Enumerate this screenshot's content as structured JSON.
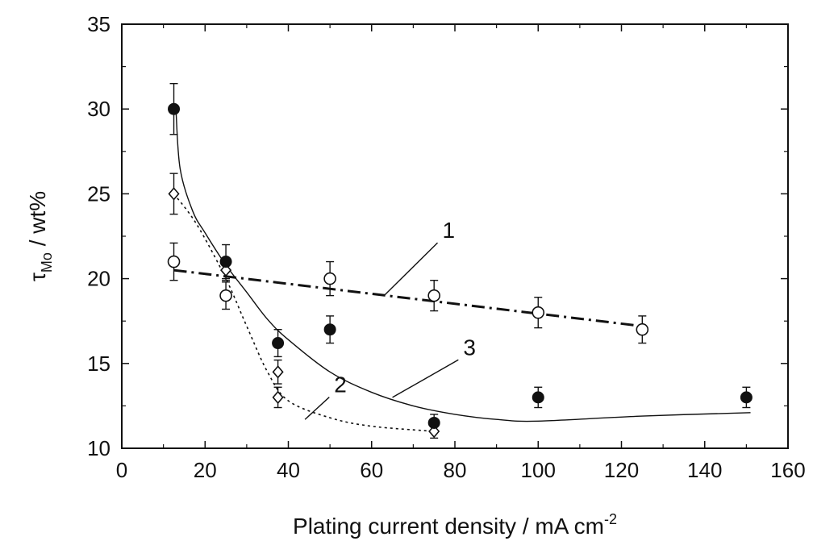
{
  "chart_data": {
    "type": "scatter",
    "xlabel": "Plating current density / mA cm",
    "xlabel_sup": "-2",
    "ylabel_main": "τ",
    "ylabel_sub": "Mo",
    "ylabel_tail": " / wt%",
    "xlim": [
      0,
      160
    ],
    "ylim": [
      10,
      35
    ],
    "xticks": [
      0,
      20,
      40,
      60,
      80,
      100,
      120,
      140,
      160
    ],
    "yticks": [
      10,
      15,
      20,
      25,
      30,
      35
    ],
    "xtick_labels": [
      "0",
      "20",
      "40",
      "60",
      "80",
      "100",
      "120",
      "140",
      "160"
    ],
    "ytick_labels": [
      "10",
      "15",
      "20",
      "25",
      "30",
      "35"
    ],
    "grid": false,
    "series": [
      {
        "marker": "open-circle",
        "points": [
          {
            "x": 12.5,
            "y": 21.0,
            "err": 1.1
          },
          {
            "x": 25,
            "y": 19.0,
            "err": 0.8
          },
          {
            "x": 50,
            "y": 20.0,
            "err": 1.0
          },
          {
            "x": 75,
            "y": 19.0,
            "err": 0.9
          },
          {
            "x": 100,
            "y": 18.0,
            "err": 0.9
          },
          {
            "x": 125,
            "y": 17.0,
            "err": 0.8
          }
        ],
        "fit": {
          "style": "dash-dot",
          "points": [
            [
              12.5,
              20.5
            ],
            [
              125,
              17.2
            ]
          ]
        }
      },
      {
        "marker": "open-diamond",
        "points": [
          {
            "x": 12.5,
            "y": 25.0,
            "err": 1.2
          },
          {
            "x": 25,
            "y": 20.5,
            "err": 0.6
          },
          {
            "x": 37.5,
            "y": 14.5,
            "err": 0.7
          },
          {
            "x": 37.5,
            "y": 13.0,
            "err": 0.6
          },
          {
            "x": 75,
            "y": 11.0,
            "err": 0.4
          }
        ],
        "fit": {
          "style": "dotted",
          "points": [
            [
              12.5,
              25.0
            ],
            [
              18,
              23.2
            ],
            [
              25,
              20.0
            ],
            [
              30,
              17.2
            ],
            [
              35,
              14.5
            ],
            [
              40,
              12.8
            ],
            [
              50,
              11.8
            ],
            [
              60,
              11.3
            ],
            [
              75,
              11.0
            ]
          ]
        }
      },
      {
        "marker": "filled-circle",
        "points": [
          {
            "x": 12.5,
            "y": 30.0,
            "err": 1.5
          },
          {
            "x": 25,
            "y": 21.0,
            "err": 1.0
          },
          {
            "x": 37.5,
            "y": 16.2,
            "err": 0.8
          },
          {
            "x": 50,
            "y": 17.0,
            "err": 0.8
          },
          {
            "x": 75,
            "y": 11.5,
            "err": 0.5
          },
          {
            "x": 100,
            "y": 13.0,
            "err": 0.6
          },
          {
            "x": 150,
            "y": 13.0,
            "err": 0.6
          }
        ],
        "fit": {
          "style": "solid",
          "points": [
            [
              13,
              30.0
            ],
            [
              14,
              26.5
            ],
            [
              17,
              24.0
            ],
            [
              20,
              22.7
            ],
            [
              25,
              20.8
            ],
            [
              30,
              19.2
            ],
            [
              35,
              17.6
            ],
            [
              40,
              16.4
            ],
            [
              50,
              14.5
            ],
            [
              60,
              13.3
            ],
            [
              70,
              12.5
            ],
            [
              80,
              12.0
            ],
            [
              90,
              11.7
            ],
            [
              100,
              11.6
            ],
            [
              125,
              11.9
            ],
            [
              151,
              12.1
            ]
          ]
        }
      }
    ],
    "annotations": [
      {
        "text": "1",
        "x": 77,
        "y": 22.4,
        "line_to": [
          63,
          19.0
        ]
      },
      {
        "text": "2",
        "x": 51,
        "y": 13.3,
        "line_to": [
          44,
          11.7
        ]
      },
      {
        "text": "3",
        "x": 82,
        "y": 15.5,
        "line_to": [
          65,
          13.0
        ]
      }
    ]
  }
}
